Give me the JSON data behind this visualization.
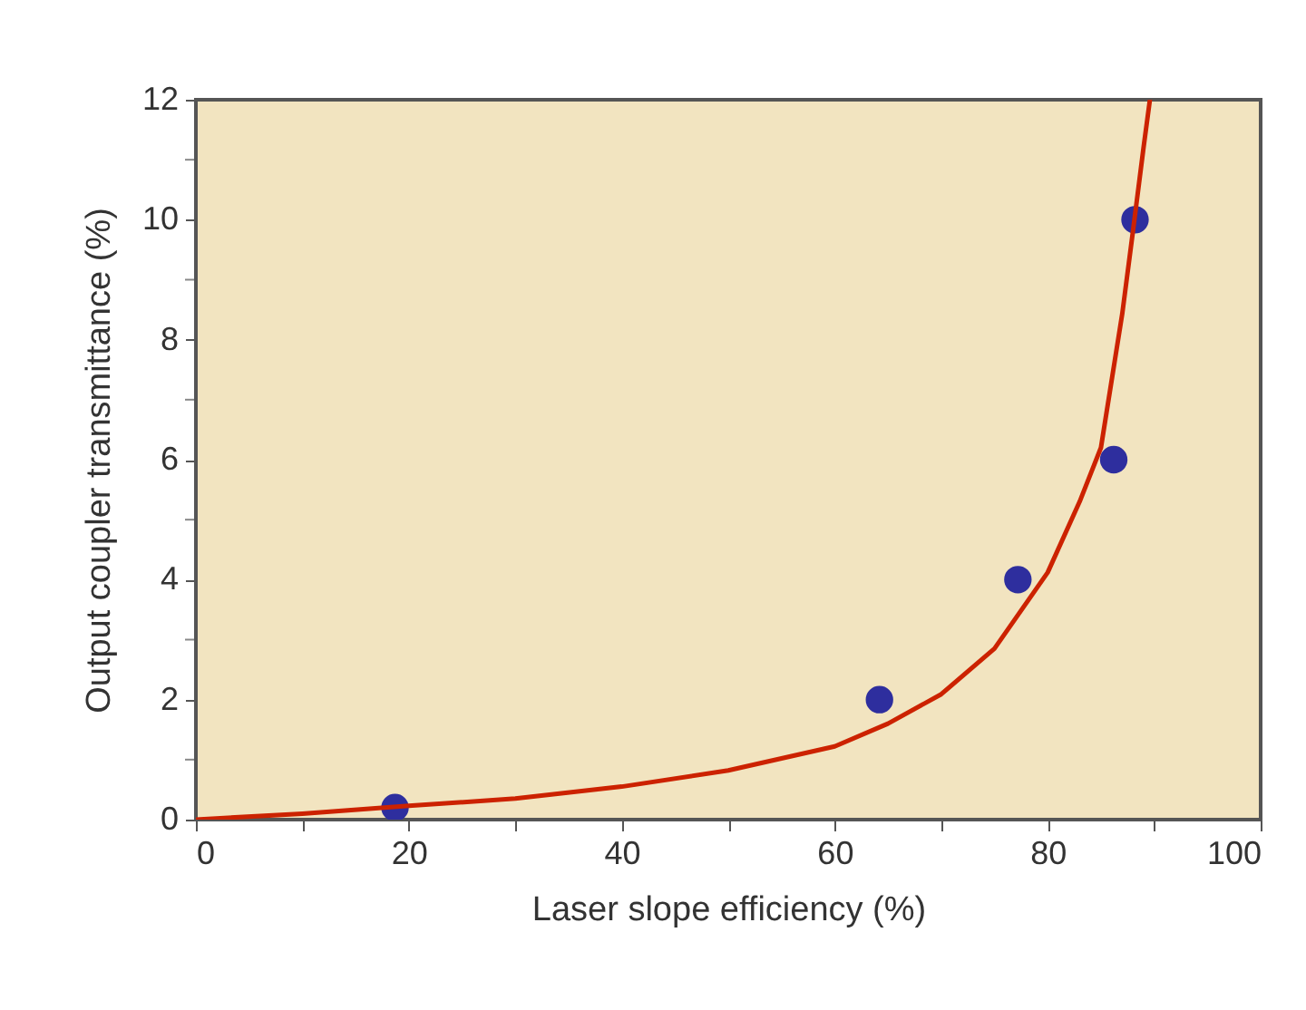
{
  "chart_data": {
    "type": "scatter",
    "xlabel": "Laser slope efficiency (%)",
    "ylabel": "Output coupler transmittance (%)",
    "xlim": [
      0,
      100
    ],
    "ylim": [
      0,
      12
    ],
    "xticks": [
      0,
      {
        "value": 10,
        "label": null
      },
      20,
      {
        "value": 30,
        "label": null
      },
      40,
      {
        "value": 50,
        "label": null
      },
      60,
      {
        "value": 70,
        "label": null
      },
      80,
      {
        "value": 90,
        "label": null
      },
      100
    ],
    "yticks": [
      0,
      {
        "value": 1,
        "label": null
      },
      2,
      {
        "value": 3,
        "label": null
      },
      4,
      {
        "value": 5,
        "label": null
      },
      6,
      {
        "value": 7,
        "label": null
      },
      8,
      {
        "value": 9,
        "label": null
      },
      10,
      {
        "value": 11,
        "label": null
      },
      12
    ],
    "grid": false,
    "marker": "circle",
    "series": [
      {
        "type": "scatter",
        "color": "#2e2e9e",
        "x": [
          18.7,
          64.2,
          77.2,
          86.2,
          88.2
        ],
        "values": [
          0.2,
          2,
          4,
          6,
          10
        ]
      },
      {
        "type": "line",
        "color": "#cc2200",
        "line_style": "solid",
        "marker": "none",
        "x": [
          0,
          10,
          20,
          30,
          40,
          50,
          60,
          65,
          70,
          75,
          80,
          83,
          85,
          87,
          88,
          89,
          89.6
        ],
        "values": [
          0,
          0.1,
          0.23,
          0.35,
          0.55,
          0.82,
          1.22,
          1.6,
          2.09,
          2.85,
          4.12,
          5.3,
          6.2,
          8.43,
          9.8,
          11.2,
          12
        ]
      }
    ]
  }
}
